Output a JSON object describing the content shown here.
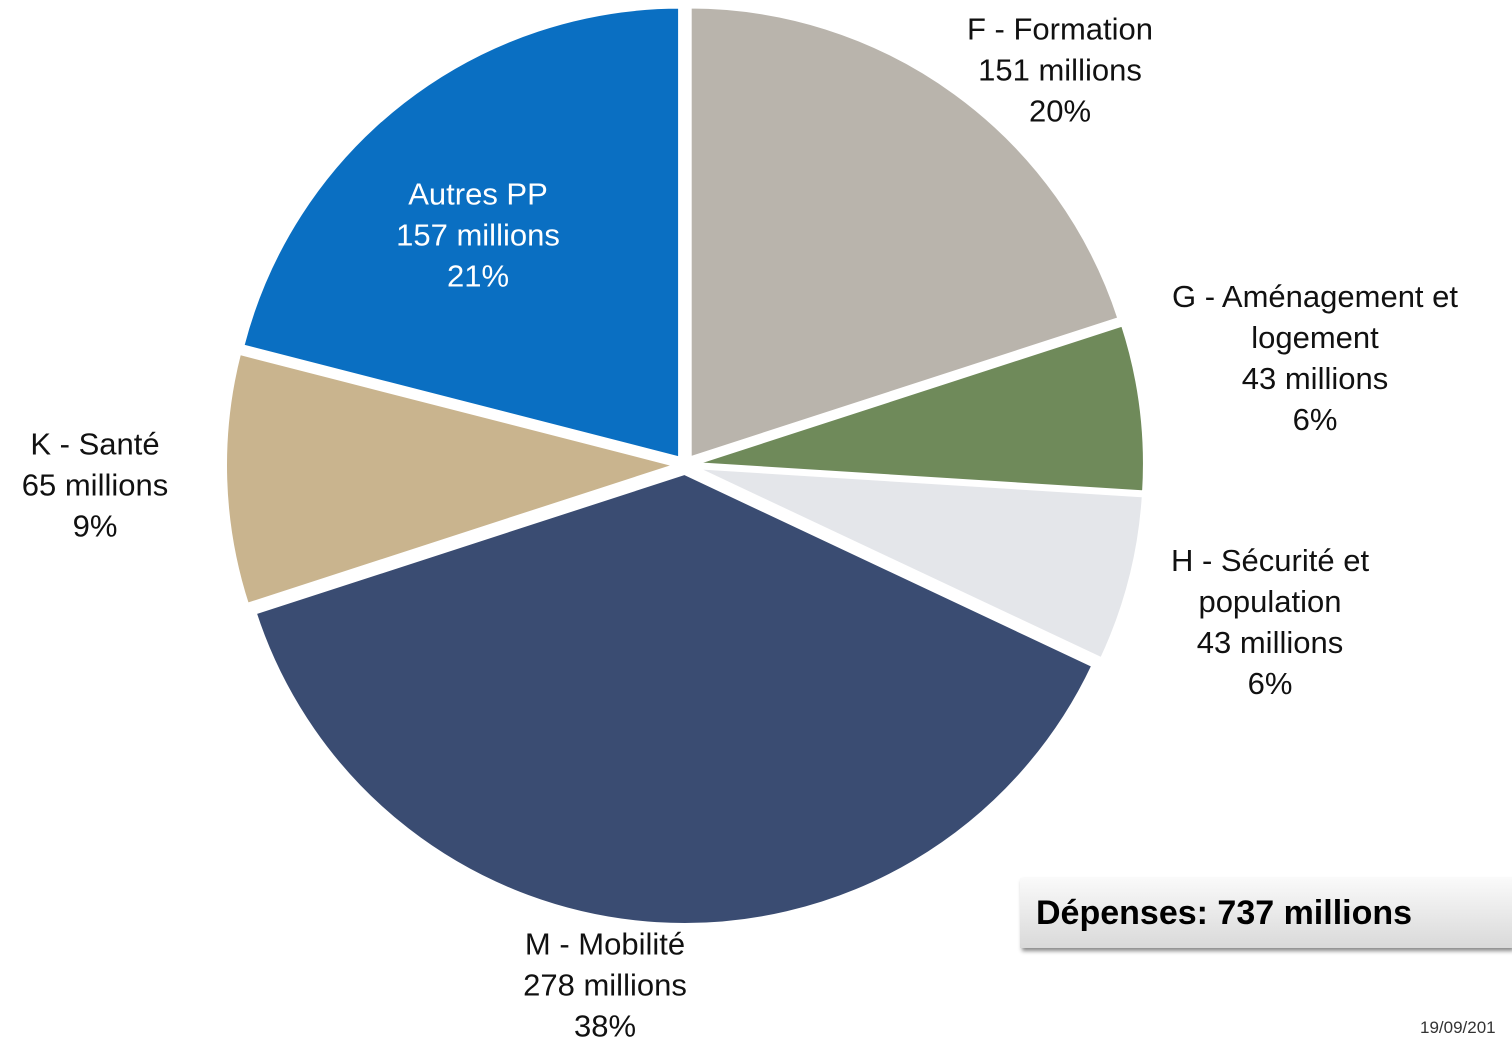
{
  "chart_data": {
    "type": "pie",
    "categories": [
      "F - Formation",
      "G - Aménagement et logement",
      "H - Sécurité et population",
      "M - Mobilité",
      "K - Santé",
      "Autres PP"
    ],
    "amount_labels": [
      "151 millions",
      "43 millions",
      "43 millions",
      "278 millions",
      "65 millions",
      "157 millions"
    ],
    "values": [
      20,
      6,
      6,
      38,
      9,
      21
    ],
    "value_labels": [
      "20%",
      "6%",
      "6%",
      "38%",
      "9%",
      "21%"
    ],
    "colors": [
      "#b9b4ac",
      "#6f8a5a",
      "#e4e6ea",
      "#3a4c72",
      "#c9b48e",
      "#0a6fc2"
    ],
    "annotation": "Dépenses: 737 millions",
    "footer": "19/09/201"
  }
}
